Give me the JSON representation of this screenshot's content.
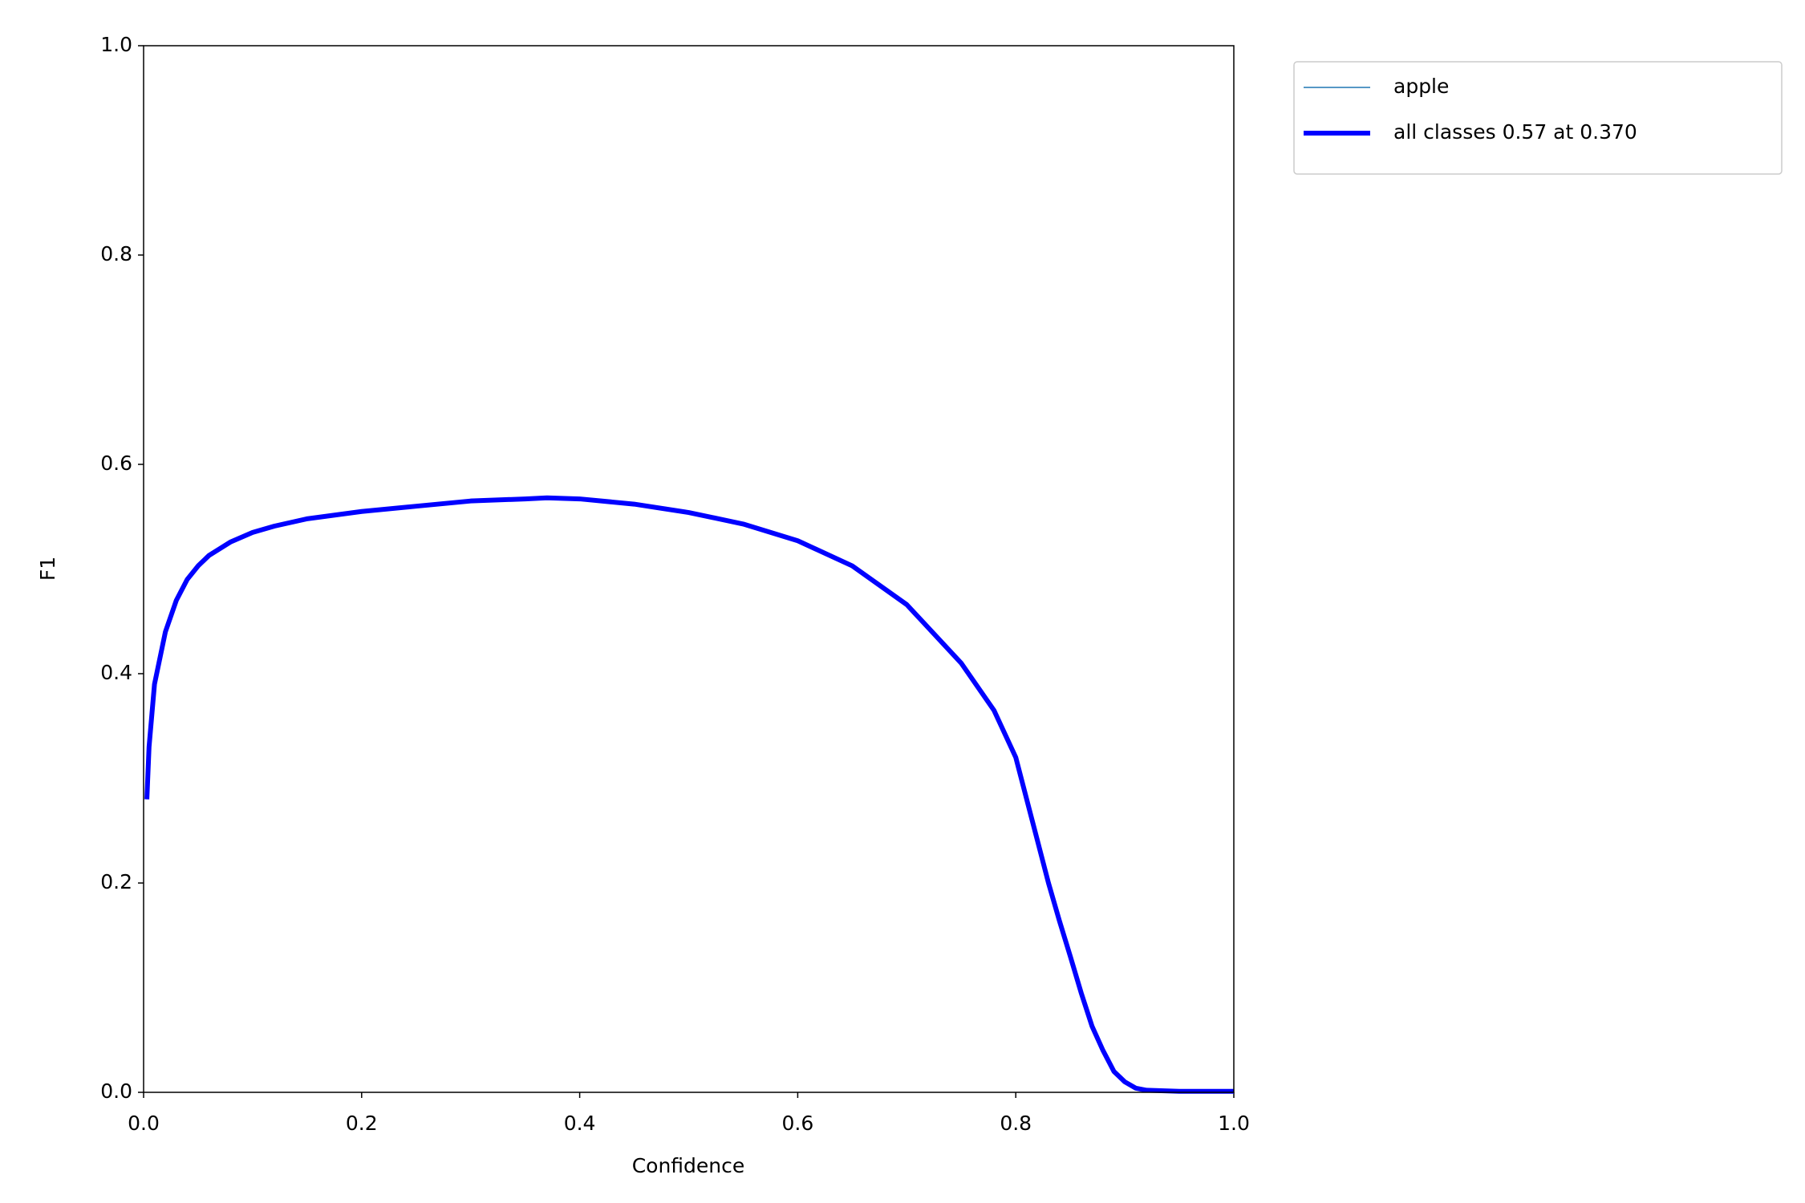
{
  "chart_data": {
    "type": "line",
    "xlabel": "Confidence",
    "ylabel": "F1",
    "x": [
      0.003,
      0.005,
      0.01,
      0.02,
      0.03,
      0.04,
      0.05,
      0.06,
      0.08,
      0.1,
      0.12,
      0.15,
      0.2,
      0.25,
      0.3,
      0.35,
      0.37,
      0.4,
      0.45,
      0.5,
      0.55,
      0.6,
      0.65,
      0.7,
      0.75,
      0.78,
      0.8,
      0.82,
      0.83,
      0.84,
      0.85,
      0.86,
      0.87,
      0.88,
      0.89,
      0.9,
      0.91,
      0.92,
      0.95,
      1.0
    ],
    "series": [
      {
        "name": "apple",
        "color": "#1f77b4",
        "linewidth": 1.5,
        "values": [
          0.28,
          0.33,
          0.39,
          0.44,
          0.47,
          0.49,
          0.503,
          0.513,
          0.526,
          0.535,
          0.541,
          0.548,
          0.555,
          0.56,
          0.565,
          0.567,
          0.568,
          0.567,
          0.562,
          0.554,
          0.543,
          0.527,
          0.503,
          0.466,
          0.41,
          0.365,
          0.32,
          0.24,
          0.2,
          0.164,
          0.13,
          0.095,
          0.063,
          0.04,
          0.02,
          0.01,
          0.004,
          0.002,
          0.001,
          0.001
        ]
      },
      {
        "name": "all classes 0.57 at 0.370",
        "color": "#0000ff",
        "linewidth": 6,
        "values": [
          0.28,
          0.33,
          0.39,
          0.44,
          0.47,
          0.49,
          0.503,
          0.513,
          0.526,
          0.535,
          0.541,
          0.548,
          0.555,
          0.56,
          0.565,
          0.567,
          0.568,
          0.567,
          0.562,
          0.554,
          0.543,
          0.527,
          0.503,
          0.466,
          0.41,
          0.365,
          0.32,
          0.24,
          0.2,
          0.164,
          0.13,
          0.095,
          0.063,
          0.04,
          0.02,
          0.01,
          0.004,
          0.002,
          0.001,
          0.001
        ]
      }
    ],
    "xlim": [
      0,
      1
    ],
    "ylim": [
      0,
      1
    ],
    "xticks": [
      {
        "value": 0,
        "label": "0.0"
      },
      0.2,
      0.4,
      0.6,
      0.8,
      {
        "value": 1,
        "label": "1.0"
      }
    ],
    "yticks": [
      {
        "value": 0,
        "label": "0.0"
      },
      0.2,
      0.4,
      0.6,
      0.8,
      {
        "value": 1,
        "label": "1.0"
      }
    ],
    "grid": false,
    "legend": "outside upper right"
  }
}
